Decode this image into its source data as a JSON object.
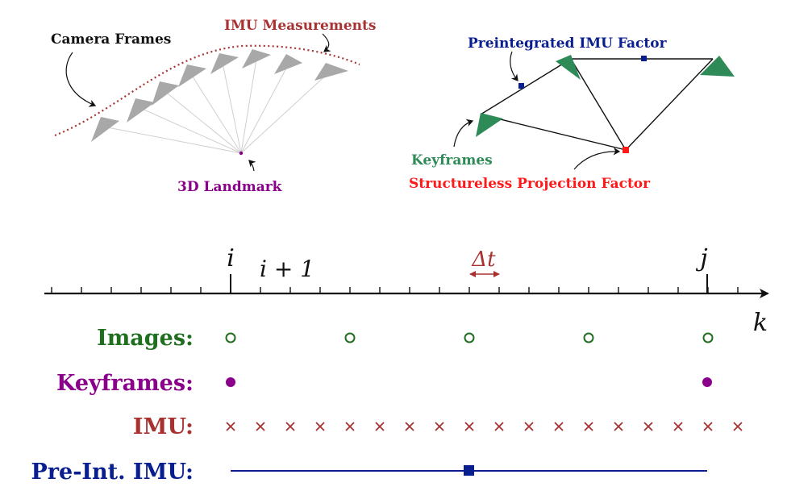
{
  "panels": {
    "left": {
      "camera_frames_label": "Camera Frames",
      "imu_measurements_label": "IMU Measurements",
      "landmark_label": "3D Landmark"
    },
    "right": {
      "preintegrated_label": "Preintegrated IMU Factor",
      "keyframes_label": "Keyframes",
      "structureless_label": "Structureless Projection Factor"
    }
  },
  "timeline": {
    "tick_i": "i",
    "tick_i_plus_1": "i + 1",
    "delta_t": "Δt",
    "tick_j": "j",
    "axis_label": "k"
  },
  "rows": {
    "images_label": "Images:",
    "keyframes_label": "Keyframes:",
    "imu_label": "IMU:",
    "preint_label": "Pre-Int. IMU:"
  },
  "colors": {
    "camera": "#a8a8a8",
    "imu": "#a83232",
    "landmark": "#8b008b",
    "factor": "#0a1f8f",
    "keyframe_green": "#2e8b57",
    "image_green": "#1f6f1f",
    "structureless": "#ff1a1a",
    "axis": "#111111"
  }
}
